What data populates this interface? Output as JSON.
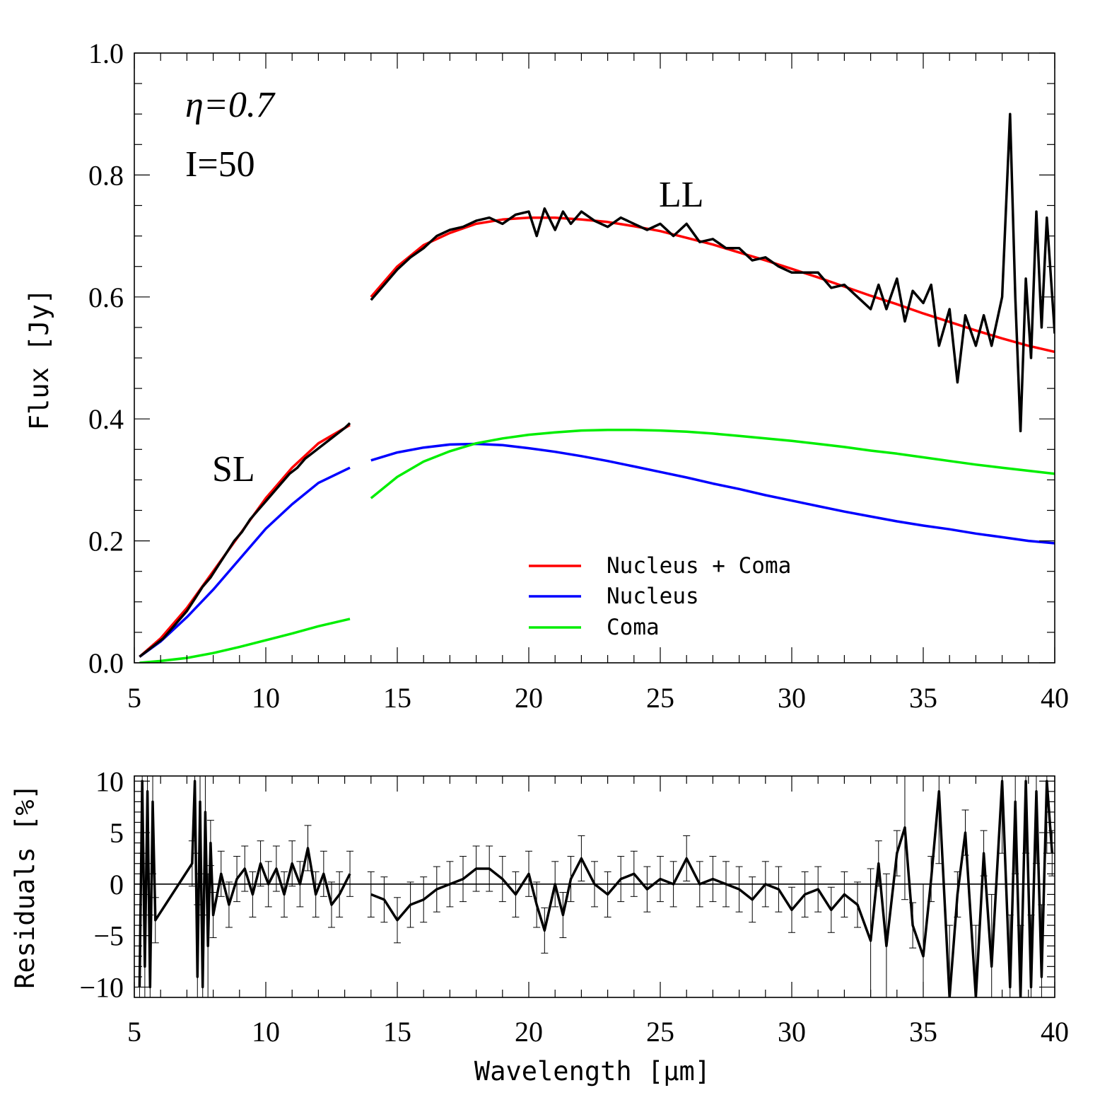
{
  "chart_data": [
    {
      "type": "line",
      "xlabel": "",
      "ylabel": "Flux [Jy]",
      "xlim": [
        5,
        40
      ],
      "ylim": [
        0.0,
        1.0
      ],
      "xticks": [
        "5",
        "10",
        "15",
        "20",
        "25",
        "30",
        "35",
        "40"
      ],
      "yticks": [
        "0.0",
        "0.2",
        "0.4",
        "0.6",
        "0.8",
        "1.0"
      ],
      "annotations": {
        "eta": "η=0.7",
        "inc": "I=50",
        "sl": "SL",
        "ll": "LL"
      },
      "legend": {
        "placement": "lower-center",
        "entries": [
          "Nucleus + Coma",
          "Nucleus",
          "Coma"
        ],
        "colors": [
          "#ff0000",
          "#0000ff",
          "#00ee00"
        ]
      },
      "series": [
        {
          "name": "Nucleus + Coma",
          "color": "#ff0000",
          "segments": [
            {
              "x": [
                5.2,
                6.0,
                7.0,
                8.0,
                9.0,
                10.0,
                11.0,
                12.0,
                13.2
              ],
              "y": [
                0.01,
                0.04,
                0.09,
                0.15,
                0.21,
                0.27,
                0.32,
                0.36,
                0.39
              ]
            },
            {
              "x": [
                14.0,
                15.0,
                16.0,
                17.0,
                18.0,
                19.0,
                20.0,
                21.0,
                22.0,
                23.0,
                24.0,
                25.0,
                26.0,
                27.0,
                28.0,
                29.0,
                30.0,
                31.0,
                32.0,
                33.0,
                34.0,
                35.0,
                36.0,
                37.0,
                38.0,
                39.0,
                40.0
              ],
              "y": [
                0.6,
                0.65,
                0.685,
                0.705,
                0.72,
                0.727,
                0.73,
                0.73,
                0.727,
                0.723,
                0.716,
                0.708,
                0.697,
                0.686,
                0.673,
                0.66,
                0.646,
                0.632,
                0.617,
                0.602,
                0.588,
                0.573,
                0.559,
                0.545,
                0.532,
                0.52,
                0.51
              ]
            }
          ]
        },
        {
          "name": "Nucleus",
          "color": "#0000ff",
          "segments": [
            {
              "x": [
                5.2,
                6.0,
                7.0,
                8.0,
                9.0,
                10.0,
                11.0,
                12.0,
                13.2
              ],
              "y": [
                0.01,
                0.035,
                0.075,
                0.12,
                0.17,
                0.22,
                0.26,
                0.295,
                0.32
              ]
            },
            {
              "x": [
                14.0,
                15.0,
                16.0,
                17.0,
                18.0,
                19.0,
                20.0,
                21.0,
                22.0,
                23.0,
                24.0,
                25.0,
                26.0,
                27.0,
                28.0,
                29.0,
                30.0,
                31.0,
                32.0,
                33.0,
                34.0,
                35.0,
                36.0,
                37.0,
                38.0,
                39.0,
                40.0
              ],
              "y": [
                0.332,
                0.345,
                0.353,
                0.358,
                0.359,
                0.357,
                0.352,
                0.346,
                0.339,
                0.331,
                0.322,
                0.313,
                0.304,
                0.294,
                0.285,
                0.275,
                0.266,
                0.257,
                0.248,
                0.24,
                0.232,
                0.225,
                0.219,
                0.212,
                0.206,
                0.2,
                0.196
              ]
            }
          ]
        },
        {
          "name": "Coma",
          "color": "#00ee00",
          "segments": [
            {
              "x": [
                5.2,
                6.0,
                7.0,
                8.0,
                9.0,
                10.0,
                11.0,
                12.0,
                13.2
              ],
              "y": [
                0.0,
                0.003,
                0.008,
                0.016,
                0.026,
                0.037,
                0.048,
                0.06,
                0.072
              ]
            },
            {
              "x": [
                14.0,
                15.0,
                16.0,
                17.0,
                18.0,
                19.0,
                20.0,
                21.0,
                22.0,
                23.0,
                24.0,
                25.0,
                26.0,
                27.0,
                28.0,
                29.0,
                30.0,
                31.0,
                32.0,
                33.0,
                34.0,
                35.0,
                36.0,
                37.0,
                38.0,
                39.0,
                40.0
              ],
              "y": [
                0.27,
                0.305,
                0.33,
                0.347,
                0.36,
                0.368,
                0.374,
                0.378,
                0.381,
                0.382,
                0.382,
                0.381,
                0.379,
                0.376,
                0.372,
                0.368,
                0.364,
                0.359,
                0.354,
                0.348,
                0.343,
                0.337,
                0.331,
                0.325,
                0.32,
                0.315,
                0.31
              ]
            }
          ]
        },
        {
          "name": "",
          "color": "#000000",
          "segments": [
            {
              "x": [
                5.2,
                5.5,
                5.8,
                6.1,
                6.4,
                6.7,
                7.0,
                7.3,
                7.6,
                7.9,
                8.2,
                8.5,
                8.8,
                9.1,
                9.4,
                9.7,
                10.0,
                10.3,
                10.6,
                10.9,
                11.2,
                11.5,
                11.8,
                12.1,
                12.4,
                12.7,
                13.0,
                13.2
              ],
              "y": [
                0.01,
                0.02,
                0.03,
                0.04,
                0.055,
                0.07,
                0.085,
                0.105,
                0.125,
                0.14,
                0.16,
                0.18,
                0.2,
                0.215,
                0.235,
                0.25,
                0.265,
                0.28,
                0.295,
                0.31,
                0.32,
                0.335,
                0.345,
                0.355,
                0.365,
                0.375,
                0.385,
                0.393
              ]
            },
            {
              "x": [
                14.0,
                14.5,
                15.0,
                15.5,
                16.0,
                16.5,
                17.0,
                17.5,
                18.0,
                18.5,
                19.0,
                19.5,
                20.0,
                20.3,
                20.6,
                21.0,
                21.3,
                21.6,
                22.0,
                22.5,
                23.0,
                23.5,
                24.0,
                24.5,
                25.0,
                25.5,
                26.0,
                26.5,
                27.0,
                27.5,
                28.0,
                28.5,
                29.0,
                29.5,
                30.0,
                30.5,
                31.0,
                31.5,
                32.0,
                32.5,
                33.0,
                33.3,
                33.6,
                34.0,
                34.3,
                34.6,
                35.0,
                35.3,
                35.6,
                36.0,
                36.3,
                36.6,
                37.0,
                37.3,
                37.6,
                38.0,
                38.3,
                38.5,
                38.7,
                38.9,
                39.1,
                39.3,
                39.5,
                39.7,
                40.0
              ],
              "y": [
                0.595,
                0.62,
                0.645,
                0.665,
                0.68,
                0.7,
                0.71,
                0.715,
                0.725,
                0.73,
                0.72,
                0.735,
                0.74,
                0.7,
                0.745,
                0.71,
                0.74,
                0.72,
                0.74,
                0.725,
                0.715,
                0.73,
                0.72,
                0.71,
                0.72,
                0.7,
                0.72,
                0.69,
                0.695,
                0.68,
                0.68,
                0.66,
                0.665,
                0.65,
                0.64,
                0.64,
                0.64,
                0.615,
                0.62,
                0.6,
                0.58,
                0.62,
                0.58,
                0.63,
                0.56,
                0.61,
                0.59,
                0.62,
                0.52,
                0.58,
                0.46,
                0.57,
                0.52,
                0.57,
                0.52,
                0.6,
                0.9,
                0.6,
                0.38,
                0.63,
                0.5,
                0.74,
                0.55,
                0.73,
                0.54
              ]
            }
          ]
        }
      ]
    },
    {
      "type": "line",
      "xlabel": "Wavelength [μm]",
      "ylabel": "Residuals [%]",
      "xlim": [
        5,
        40
      ],
      "ylim": [
        -11,
        10.5
      ],
      "xticks": [
        "5",
        "10",
        "15",
        "20",
        "25",
        "30",
        "35",
        "40"
      ],
      "yticks": [
        "10",
        "5",
        "0",
        "−5",
        "−10"
      ],
      "zero_line": true,
      "series": [
        {
          "name": "",
          "color": "#000000",
          "segments": [
            {
              "x": [
                5.2,
                5.3,
                5.4,
                5.5,
                5.6,
                5.7,
                5.8,
                7.2,
                7.3,
                7.4,
                7.5,
                7.6,
                7.7,
                7.8,
                7.9,
                8.0,
                8.3,
                8.6,
                8.9,
                9.2,
                9.5,
                9.8,
                10.1,
                10.4,
                10.7,
                11.0,
                11.3,
                11.6,
                11.9,
                12.2,
                12.5,
                12.8,
                13.2
              ],
              "y": [
                -10,
                10,
                -8,
                9,
                -10,
                8,
                -3.5,
                2,
                10,
                -9,
                8,
                -10,
                7,
                -6,
                4,
                -3,
                1,
                -2,
                0.5,
                1.5,
                -1,
                2,
                0,
                1.5,
                -1,
                2,
                0,
                3.5,
                -1,
                1,
                -2,
                -1,
                1
              ]
            },
            {
              "x": [
                14.0,
                14.5,
                15.0,
                15.5,
                16.0,
                16.5,
                17.0,
                17.5,
                18.0,
                18.5,
                19.0,
                19.5,
                20.0,
                20.3,
                20.6,
                21.0,
                21.3,
                21.6,
                22.0,
                22.5,
                23.0,
                23.5,
                24.0,
                24.5,
                25.0,
                25.5,
                26.0,
                26.5,
                27.0,
                27.5,
                28.0,
                28.5,
                29.0,
                29.5,
                30.0,
                30.5,
                31.0,
                31.5,
                32.0,
                32.5,
                33.0,
                33.3,
                33.6,
                34.0,
                34.3,
                34.6,
                35.0,
                35.3,
                35.6,
                36.0,
                36.3,
                36.6,
                37.0,
                37.3,
                37.6,
                38.0,
                38.3,
                38.5,
                38.7,
                38.9,
                39.1,
                39.3,
                39.5,
                39.7,
                39.9
              ],
              "y": [
                -1,
                -1.5,
                -3.5,
                -2,
                -1.5,
                -0.5,
                0,
                0.5,
                1.5,
                1.5,
                0.5,
                -1,
                1,
                -2,
                -4.5,
                0,
                -3,
                0.5,
                2.5,
                0,
                -1,
                0.5,
                1,
                -0.5,
                0.5,
                0,
                2.5,
                0,
                0.5,
                0,
                -0.5,
                -1.5,
                0,
                -0.5,
                -2.5,
                -1,
                -0.5,
                -2.5,
                -1,
                -2,
                -5.5,
                2,
                -6,
                3,
                5.5,
                -4,
                -7,
                0.5,
                9,
                -11,
                -1,
                5,
                -11,
                3,
                -8,
                10,
                -10,
                8,
                -11,
                10,
                -10,
                9,
                -9,
                10,
                3
              ]
            }
          ]
        }
      ]
    }
  ]
}
